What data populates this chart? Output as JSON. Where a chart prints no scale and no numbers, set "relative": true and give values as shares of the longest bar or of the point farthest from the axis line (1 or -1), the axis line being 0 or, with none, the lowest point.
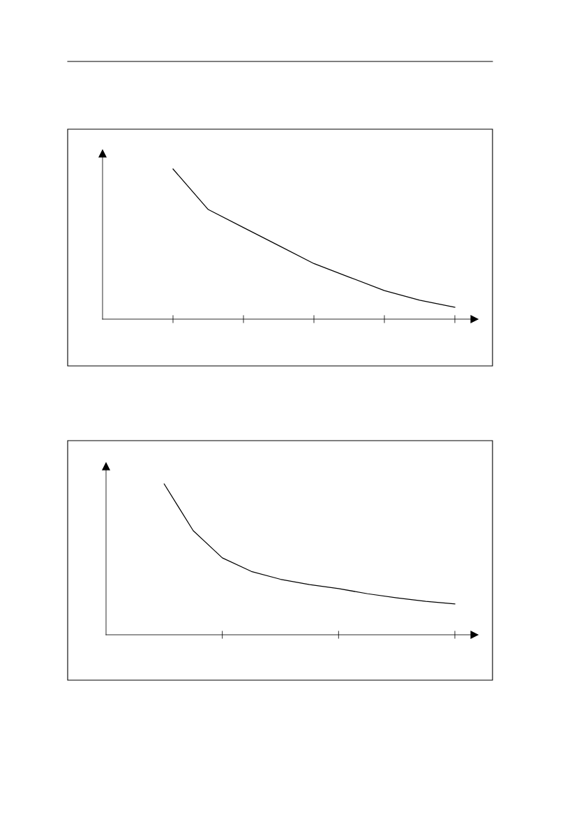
{
  "chart_data": [
    {
      "type": "line",
      "relative": true,
      "categories": [
        null,
        null,
        null,
        null,
        null,
        null,
        null,
        null,
        null
      ],
      "series": [
        {
          "color": "#000000",
          "values": [
            1.0,
            0.73,
            0.61,
            0.49,
            0.37,
            0.28,
            0.19,
            0.126,
            0.079
          ]
        }
      ],
      "grid": false,
      "legend": false,
      "marker": "none",
      "line_style": "solid"
    },
    {
      "type": "line",
      "relative": true,
      "categories": [
        null,
        null,
        null,
        null,
        null,
        null,
        null,
        null,
        null,
        null,
        null
      ],
      "series": [
        {
          "color": "#000000",
          "values": [
            1.0,
            0.69,
            0.51,
            0.42,
            0.368,
            0.333,
            0.306,
            0.272,
            0.245,
            0.222,
            0.204
          ]
        }
      ],
      "grid": false,
      "legend": false,
      "marker": "none",
      "line_style": "solid"
    }
  ]
}
